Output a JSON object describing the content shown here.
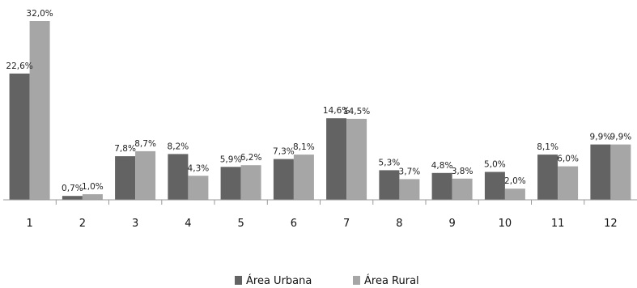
{
  "chart_data": {
    "type": "bar",
    "categories": [
      "1",
      "2",
      "3",
      "4",
      "5",
      "6",
      "7",
      "8",
      "9",
      "10",
      "11",
      "12"
    ],
    "series": [
      {
        "name": "Área Urbana",
        "color": "#636363",
        "values": [
          22.6,
          0.7,
          7.8,
          8.2,
          5.9,
          7.3,
          14.6,
          5.3,
          4.8,
          5.0,
          8.1,
          9.9
        ],
        "labels": [
          "22,6%",
          "0,7%",
          "7,8%",
          "8,2%",
          "5,9%",
          "7,3%",
          "14,6%",
          "5,3%",
          "4,8%",
          "5,0%",
          "8,1%",
          "9,9%"
        ]
      },
      {
        "name": "Área Rural",
        "color": "#a6a6a6",
        "values": [
          32.0,
          1.0,
          8.7,
          4.3,
          6.2,
          8.1,
          14.5,
          3.7,
          3.8,
          2.0,
          6.0,
          9.9
        ],
        "labels": [
          "32,0%",
          "1,0%",
          "8,7%",
          "4,3%",
          "6,2%",
          "8,1%",
          "14,5%",
          "3,7%",
          "3,8%",
          "2,0%",
          "6,0%",
          "9,9%"
        ]
      }
    ],
    "ylim": [
      0,
      32
    ],
    "grid": false,
    "legend_position": "bottom-center"
  }
}
